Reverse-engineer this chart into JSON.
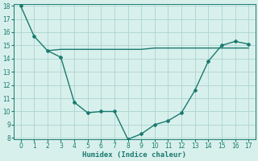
{
  "xlabel": "Humidex (Indice chaleur)",
  "line1_x": [
    0,
    1,
    2,
    3,
    4,
    5,
    6,
    7,
    8,
    9,
    10,
    11,
    12,
    13,
    14,
    15,
    16,
    17
  ],
  "line1_y": [
    18,
    15.7,
    14.6,
    14.1,
    10.7,
    9.9,
    10.0,
    10.0,
    7.9,
    8.3,
    9.0,
    9.3,
    9.9,
    11.6,
    13.8,
    15.0,
    15.3,
    15.1
  ],
  "line2_x": [
    2,
    3,
    4,
    5,
    6,
    7,
    8,
    9,
    10,
    11,
    12,
    13,
    14,
    15,
    16,
    17
  ],
  "line2_y": [
    14.6,
    14.7,
    14.7,
    14.7,
    14.7,
    14.7,
    14.7,
    14.7,
    14.8,
    14.8,
    14.8,
    14.8,
    14.8,
    14.8,
    14.8,
    14.8
  ],
  "line_color": "#1a7a6e",
  "bg_color": "#d8f0ec",
  "grid_color": "#b0d8d4",
  "xlim": [
    -0.5,
    17.5
  ],
  "ylim": [
    7.9,
    18.1
  ],
  "yticks": [
    8,
    9,
    10,
    11,
    12,
    13,
    14,
    15,
    16,
    17,
    18
  ],
  "xticks": [
    0,
    1,
    2,
    3,
    4,
    5,
    6,
    7,
    8,
    9,
    10,
    11,
    12,
    13,
    14,
    15,
    16,
    17
  ],
  "marker": "D",
  "markersize": 2.0,
  "linewidth": 1.0
}
